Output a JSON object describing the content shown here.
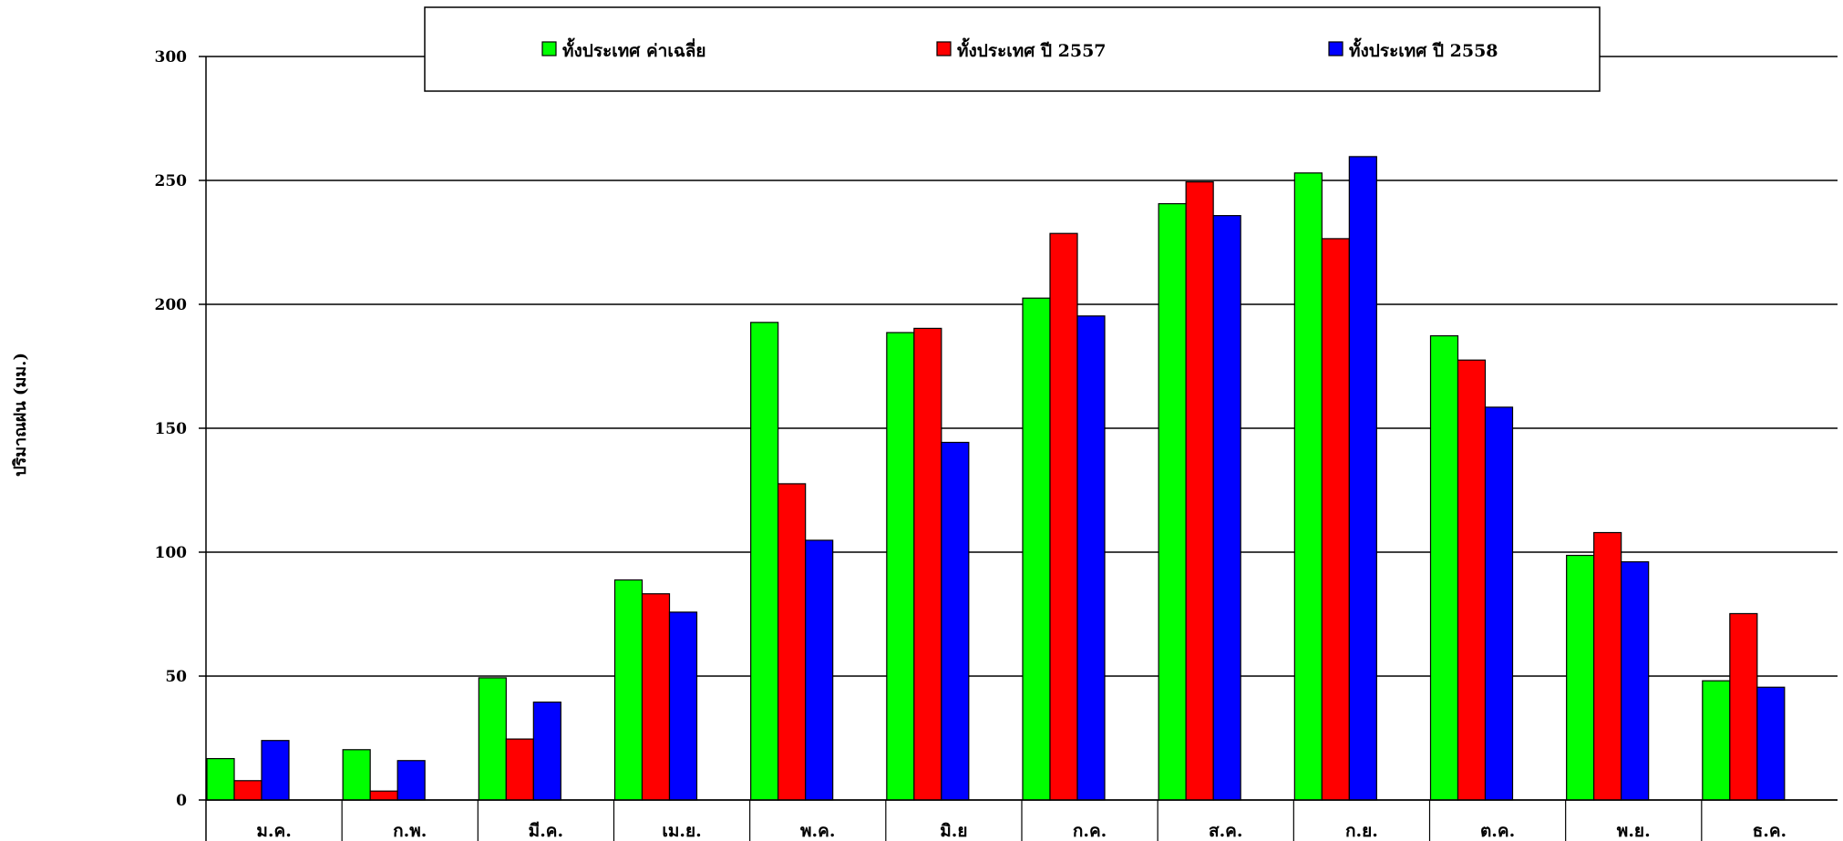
{
  "chart_data": {
    "type": "bar",
    "title": "",
    "xlabel": "",
    "ylabel": "ปริมาณฝน (มม.)",
    "ylim": [
      0,
      300
    ],
    "yticks": [
      0,
      50,
      100,
      150,
      200,
      250,
      300
    ],
    "grid": true,
    "legend_position": "top",
    "categories": [
      "ม.ค.",
      "ก.พ.",
      "มี.ค.",
      "เม.ย.",
      "พ.ค.",
      "มิ.ย",
      "ก.ค.",
      "ส.ค.",
      "ก.ย.",
      "ต.ค.",
      "พ.ย.",
      "ธ.ค."
    ],
    "series": [
      {
        "name": "ทั้งประเทศ ค่าเฉลี่ย",
        "color": "#00ff00",
        "values": [
          16.7,
          20.3,
          49.3,
          88.8,
          192.7,
          188.6,
          202.5,
          240.6,
          253.0,
          187.3,
          98.7,
          48.1
        ]
      },
      {
        "name": "ทั้งประเทศ ปี 2557",
        "color": "#ff0000",
        "values": [
          7.8,
          3.6,
          24.6,
          83.2,
          127.6,
          190.3,
          228.6,
          249.4,
          226.5,
          177.5,
          107.9,
          75.2
        ]
      },
      {
        "name": "ทั้งประเทศ ปี 2558",
        "color": "#0000ff",
        "values": [
          24.0,
          15.9,
          39.5,
          75.8,
          104.8,
          144.3,
          195.3,
          235.8,
          259.6,
          158.5,
          96.1,
          45.5
        ]
      }
    ]
  }
}
